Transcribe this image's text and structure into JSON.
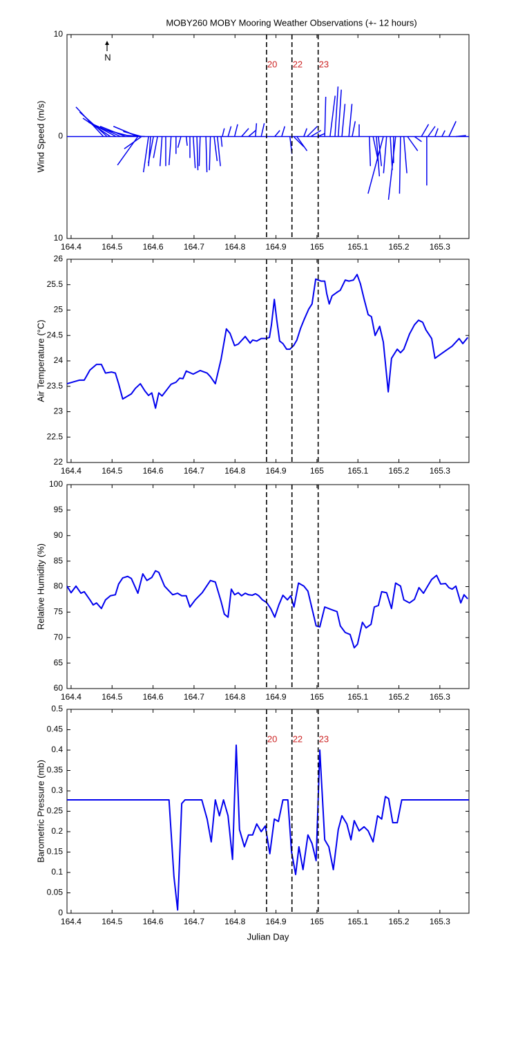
{
  "chart_data": [
    {
      "type": "stick",
      "title": "MOBY260 MOBY Mooring Weather Observations (+- 12 hours)",
      "ylabel": "Wind Speed (m/s)",
      "north_label": "N",
      "color": "#0000ee",
      "xlim": [
        164.39,
        165.371
      ],
      "xticks": [
        164.4,
        164.5,
        164.6,
        164.7,
        164.8,
        164.9,
        165,
        165.1,
        165.2,
        165.3
      ],
      "ylim": [
        -10,
        10
      ],
      "yticks": [
        {
          "value": -10,
          "label": "10"
        },
        0,
        10
      ],
      "vlines": [
        164.877,
        164.939,
        165.003
      ],
      "vline_labels": [
        "20",
        "22",
        "23"
      ],
      "x": [
        164.479,
        164.488,
        164.496,
        164.51,
        164.521,
        164.533,
        164.547,
        164.563,
        164.572,
        164.58,
        164.563,
        164.572,
        164.589,
        164.594,
        164.601,
        164.611,
        164.622,
        164.631,
        164.644,
        164.656,
        164.668,
        164.681,
        164.69,
        164.698,
        164.707,
        164.715,
        164.729,
        164.74,
        164.749,
        164.757,
        164.766,
        164.769,
        164.783,
        164.799,
        164.816,
        164.833,
        164.85,
        164.864,
        164.897,
        164.914,
        164.934,
        164.943,
        164.951,
        164.968,
        164.976,
        164.985,
        165.002,
        165.019,
        165.032,
        165.044,
        165.052,
        165.061,
        165.078,
        165.086,
        165.103,
        165.128,
        165.137,
        165.145,
        165.15,
        165.162,
        165.17,
        165.179,
        165.187,
        165.192,
        165.204,
        165.212,
        165.221,
        165.238,
        165.255,
        165.268,
        165.271,
        165.288,
        165.305,
        165.322,
        165.339
      ],
      "u": [
        -2.7,
        -2.7,
        -2.7,
        -2.7,
        -2.7,
        -2.5,
        -2.7,
        -2.4,
        -1.8,
        -1.7,
        -2.0,
        -1.7,
        -0.5,
        -0.2,
        -0.5,
        -0.4,
        -0.2,
        0,
        -0.2,
        0,
        -0.3,
        0.1,
        0,
        0.2,
        0.1,
        -0.1,
        0.1,
        -0.1,
        0.3,
        0.3,
        0.1,
        0.2,
        0.3,
        0.3,
        0.7,
        0.7,
        0.1,
        0.3,
        0.5,
        0.3,
        0.2,
        1.0,
        1.0,
        0.3,
        1.0,
        1.0,
        0.7,
        0.1,
        0.5,
        0.3,
        0.3,
        0.3,
        0.3,
        0.3,
        0,
        0.1,
        0.5,
        0.3,
        0.3,
        -1.5,
        -0.3,
        0.2,
        0,
        -0.7,
        -0.1,
        0.3,
        1.0,
        0.7,
        0.7,
        0,
        0.7,
        0.3,
        0.3,
        0.7,
        1.0
      ],
      "v": [
        2.9,
        2.4,
        1.8,
        1.4,
        1.2,
        1.0,
        0.7,
        1.0,
        0.5,
        0.1,
        -2.8,
        -1.2,
        -3.5,
        -2.9,
        -2.6,
        -2.1,
        -2.9,
        -2.9,
        -2.8,
        -1.7,
        -1.1,
        -0.9,
        -2.1,
        -3.1,
        -3.3,
        -2.9,
        -3.5,
        -3.3,
        -2.4,
        -2.9,
        -1.0,
        0.8,
        1.0,
        1.2,
        0.8,
        0.6,
        1.3,
        1.3,
        0.6,
        1.0,
        -1.7,
        -1.0,
        -1.4,
        0.8,
        1.0,
        0.6,
        0.3,
        3.9,
        4.0,
        4.9,
        4.6,
        3.2,
        3.2,
        1.5,
        1.2,
        -2.9,
        -2.4,
        -3.9,
        -2.9,
        -5.6,
        -3.6,
        -3.3,
        -2.6,
        -6.2,
        -5.6,
        -3.6,
        -1.4,
        -0.5,
        1.2,
        -4.8,
        1.0,
        0.8,
        0.6,
        1.5,
        0.1
      ]
    },
    {
      "type": "line",
      "ylabel": "Air Temperature (°C)",
      "color": "#0000ee",
      "xlim": [
        164.39,
        165.371
      ],
      "xticks": [
        164.4,
        164.5,
        164.6,
        164.7,
        164.8,
        164.9,
        165,
        165.1,
        165.2,
        165.3
      ],
      "ylim": [
        22,
        26
      ],
      "yticks": [
        22,
        22.5,
        23,
        23.5,
        24,
        24.5,
        25,
        25.5,
        26
      ],
      "vlines": [
        164.877,
        164.939,
        165.003
      ],
      "x": [
        164.39,
        164.42,
        164.432,
        164.446,
        164.462,
        164.474,
        164.484,
        164.499,
        164.508,
        164.516,
        164.526,
        164.547,
        164.557,
        164.569,
        164.58,
        164.589,
        164.597,
        164.606,
        164.614,
        164.622,
        164.644,
        164.656,
        164.665,
        164.673,
        164.681,
        164.698,
        164.715,
        164.732,
        164.74,
        164.752,
        164.766,
        164.779,
        164.788,
        164.799,
        164.808,
        164.825,
        164.837,
        164.843,
        164.853,
        164.864,
        164.875,
        164.884,
        164.889,
        164.896,
        164.902,
        164.909,
        164.917,
        164.926,
        164.934,
        164.943,
        164.951,
        164.96,
        164.968,
        164.98,
        164.988,
        164.997,
        165.01,
        165.019,
        165.024,
        165.03,
        165.037,
        165.049,
        165.057,
        165.069,
        165.078,
        165.089,
        165.098,
        165.106,
        165.115,
        165.125,
        165.133,
        165.142,
        165.153,
        165.162,
        165.174,
        165.182,
        165.196,
        165.204,
        165.212,
        165.226,
        165.238,
        165.248,
        165.258,
        165.266,
        165.28,
        165.288,
        165.3,
        165.314,
        165.33,
        165.347,
        165.356,
        165.368
      ],
      "values": [
        23.55,
        23.62,
        23.62,
        23.82,
        23.93,
        23.93,
        23.76,
        23.78,
        23.76,
        23.55,
        23.25,
        23.35,
        23.46,
        23.55,
        23.41,
        23.32,
        23.37,
        23.07,
        23.37,
        23.31,
        23.54,
        23.58,
        23.66,
        23.65,
        23.8,
        23.74,
        23.81,
        23.76,
        23.69,
        23.55,
        24.03,
        24.63,
        24.54,
        24.3,
        24.33,
        24.48,
        24.35,
        24.41,
        24.39,
        24.44,
        24.44,
        24.46,
        24.71,
        25.21,
        24.8,
        24.39,
        24.34,
        24.23,
        24.23,
        24.3,
        24.41,
        24.64,
        24.8,
        25.02,
        25.12,
        25.61,
        25.57,
        25.57,
        25.32,
        25.12,
        25.28,
        25.35,
        25.39,
        25.59,
        25.57,
        25.59,
        25.7,
        25.52,
        25.22,
        24.91,
        24.87,
        24.5,
        24.68,
        24.37,
        23.39,
        24.05,
        24.23,
        24.16,
        24.23,
        24.53,
        24.71,
        24.8,
        24.76,
        24.61,
        24.44,
        24.05,
        24.12,
        24.2,
        24.29,
        24.44,
        24.34,
        24.46
      ]
    },
    {
      "type": "line",
      "ylabel": "Relative Humidity (%)",
      "color": "#0000ee",
      "xlim": [
        164.39,
        165.371
      ],
      "xticks": [
        164.4,
        164.5,
        164.6,
        164.7,
        164.8,
        164.9,
        165,
        165.1,
        165.2,
        165.3
      ],
      "ylim": [
        60,
        100
      ],
      "yticks": [
        60,
        65,
        70,
        75,
        80,
        85,
        90,
        95,
        100
      ],
      "vlines": [
        164.877,
        164.939,
        165.003
      ],
      "x": [
        164.39,
        164.4,
        164.412,
        164.424,
        164.432,
        164.446,
        164.454,
        164.462,
        164.474,
        164.484,
        164.496,
        164.508,
        164.516,
        164.526,
        164.538,
        164.547,
        164.563,
        164.575,
        164.585,
        164.597,
        164.606,
        164.614,
        164.628,
        164.648,
        164.66,
        164.67,
        164.681,
        164.69,
        164.703,
        164.72,
        164.74,
        164.752,
        164.766,
        164.774,
        164.783,
        164.791,
        164.799,
        164.808,
        164.816,
        164.825,
        164.833,
        164.842,
        164.85,
        164.858,
        164.867,
        164.877,
        164.887,
        164.897,
        164.907,
        164.917,
        164.928,
        164.936,
        164.944,
        164.955,
        164.968,
        164.978,
        164.988,
        164.998,
        165.007,
        165.019,
        165.035,
        165.049,
        165.057,
        165.069,
        165.081,
        165.091,
        165.099,
        165.111,
        165.12,
        165.132,
        165.14,
        165.15,
        165.158,
        165.17,
        165.182,
        165.192,
        165.204,
        165.212,
        165.226,
        165.238,
        165.249,
        165.26,
        165.271,
        165.28,
        165.292,
        165.302,
        165.314,
        165.322,
        165.33,
        165.339,
        165.351,
        165.359,
        165.368
      ],
      "values": [
        80.1,
        78.8,
        80.1,
        78.7,
        79.0,
        77.4,
        76.4,
        76.8,
        75.7,
        77.4,
        78.2,
        78.4,
        80.5,
        81.7,
        82.0,
        81.6,
        78.7,
        82.5,
        81.2,
        81.8,
        83.1,
        82.8,
        80.1,
        78.4,
        78.7,
        78.2,
        78.2,
        76.0,
        77.4,
        78.8,
        81.2,
        80.9,
        77.1,
        74.6,
        74.0,
        79.5,
        78.4,
        78.8,
        78.2,
        78.7,
        78.4,
        78.3,
        78.6,
        78.2,
        77.4,
        76.9,
        75.7,
        74.0,
        76.4,
        78.3,
        77.4,
        78.2,
        76.0,
        80.7,
        80.1,
        79.1,
        75.7,
        72.3,
        72.1,
        76.0,
        75.5,
        75.1,
        72.3,
        71.0,
        70.6,
        68.0,
        68.7,
        73.0,
        71.9,
        72.6,
        76.0,
        76.3,
        79.0,
        78.8,
        75.7,
        80.7,
        80.1,
        77.4,
        76.8,
        77.5,
        79.8,
        78.7,
        80.2,
        81.4,
        82.2,
        80.5,
        80.6,
        79.8,
        79.5,
        80.1,
        76.8,
        78.4,
        77.6
      ]
    },
    {
      "type": "line",
      "ylabel": "Barometric Pressure (mb)",
      "xlabel": "Julian Day",
      "color": "#0000ee",
      "xlim": [
        164.39,
        165.371
      ],
      "xticks": [
        164.4,
        164.5,
        164.6,
        164.7,
        164.8,
        164.9,
        165,
        165.1,
        165.2,
        165.3
      ],
      "ylim": [
        0,
        0.5
      ],
      "yticks": [
        0,
        0.05,
        0.1,
        0.15,
        0.2,
        0.25,
        0.3,
        0.35,
        0.4,
        0.45,
        0.5
      ],
      "vlines": [
        164.877,
        164.939,
        165.003
      ],
      "vline_labels": [
        "20",
        "22",
        "23"
      ],
      "x": [
        164.39,
        164.639,
        164.651,
        164.66,
        164.67,
        164.678,
        164.719,
        164.732,
        164.742,
        164.752,
        164.762,
        164.772,
        164.783,
        164.794,
        164.803,
        164.811,
        164.823,
        164.833,
        164.843,
        164.853,
        164.864,
        164.874,
        164.885,
        164.896,
        164.906,
        164.917,
        164.929,
        164.938,
        164.948,
        164.956,
        164.966,
        164.978,
        164.988,
        164.998,
        165.007,
        165.019,
        165.029,
        165.04,
        165.052,
        165.061,
        165.073,
        165.083,
        165.091,
        165.103,
        165.115,
        165.125,
        165.137,
        165.148,
        165.158,
        165.167,
        165.175,
        165.185,
        165.196,
        165.207,
        165.371
      ],
      "values": [
        0.278,
        0.278,
        0.09,
        0.008,
        0.269,
        0.278,
        0.278,
        0.231,
        0.175,
        0.278,
        0.239,
        0.278,
        0.239,
        0.132,
        0.412,
        0.205,
        0.163,
        0.192,
        0.192,
        0.219,
        0.2,
        0.214,
        0.146,
        0.231,
        0.225,
        0.278,
        0.278,
        0.151,
        0.095,
        0.163,
        0.107,
        0.192,
        0.171,
        0.129,
        0.4,
        0.18,
        0.163,
        0.107,
        0.205,
        0.239,
        0.219,
        0.18,
        0.227,
        0.202,
        0.212,
        0.202,
        0.175,
        0.239,
        0.231,
        0.286,
        0.281,
        0.222,
        0.222,
        0.278,
        0.278
      ]
    }
  ]
}
